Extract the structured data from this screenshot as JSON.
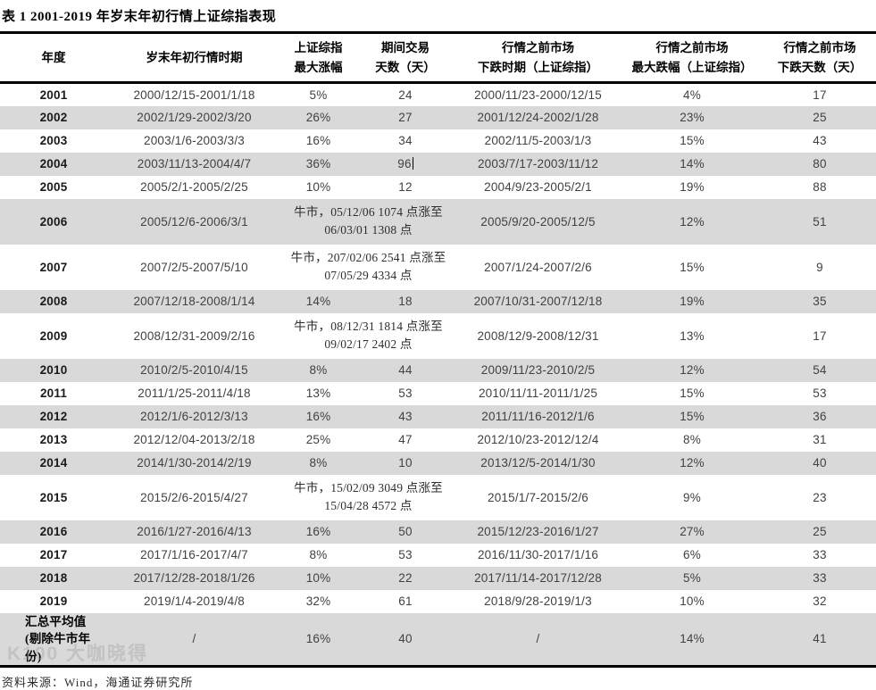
{
  "title": "表 1 2001-2019 年岁末年初行情上证综指表现",
  "table": {
    "headers": [
      {
        "line1": "年度",
        "line2": ""
      },
      {
        "line1": "岁末年初行情时期",
        "line2": ""
      },
      {
        "line1": "上证综指",
        "line2": "最大涨幅"
      },
      {
        "line1": "期间交易",
        "line2": "天数（天）"
      },
      {
        "line1": "行情之前市场",
        "line2": "下跌时期（上证综指）"
      },
      {
        "line1": "行情之前市场",
        "line2": "最大跌幅（上证综指）"
      },
      {
        "line1": "行情之前市场",
        "line2": "下跌天数（天）"
      }
    ],
    "rows": [
      {
        "year": "2001",
        "period": "2000/12/15-2001/1/18",
        "gain": "5%",
        "days": "24",
        "decline_period": "2000/11/23-2000/12/15",
        "decline": "4%",
        "decline_days": "17"
      },
      {
        "year": "2002",
        "period": "2002/1/29-2002/3/20",
        "gain": "26%",
        "days": "27",
        "decline_period": "2001/12/24-2002/1/28",
        "decline": "23%",
        "decline_days": "25"
      },
      {
        "year": "2003",
        "period": "2003/1/6-2003/3/3",
        "gain": "16%",
        "days": "34",
        "decline_period": "2002/11/5-2003/1/3",
        "decline": "15%",
        "decline_days": "43"
      },
      {
        "year": "2004",
        "period": "2003/11/13-2004/4/7",
        "gain": "36%",
        "days": "96",
        "text_cursor_after_days": true,
        "decline_period": "2003/7/17-2003/11/12",
        "decline": "14%",
        "decline_days": "80"
      },
      {
        "year": "2005",
        "period": "2005/2/1-2005/2/25",
        "gain": "10%",
        "days": "12",
        "decline_period": "2004/9/23-2005/2/1",
        "decline": "19%",
        "decline_days": "88"
      },
      {
        "year": "2006",
        "period": "2005/12/6-2006/3/1",
        "bull_note": "牛市，05/12/06 1074 点涨至 06/03/01 1308 点",
        "decline_period": "2005/9/20-2005/12/5",
        "decline": "12%",
        "decline_days": "51"
      },
      {
        "year": "2007",
        "period": "2007/2/5-2007/5/10",
        "bull_note": "牛市，207/02/06 2541 点涨至 07/05/29 4334 点",
        "decline_period": "2007/1/24-2007/2/6",
        "decline": "15%",
        "decline_days": "9"
      },
      {
        "year": "2008",
        "period": "2007/12/18-2008/1/14",
        "gain": "14%",
        "days": "18",
        "decline_period": "2007/10/31-2007/12/18",
        "decline": "19%",
        "decline_days": "35"
      },
      {
        "year": "2009",
        "period": "2008/12/31-2009/2/16",
        "bull_note": "牛市，08/12/31 1814 点涨至 09/02/17 2402 点",
        "decline_period": "2008/12/9-2008/12/31",
        "decline": "13%",
        "decline_days": "17"
      },
      {
        "year": "2010",
        "period": "2010/2/5-2010/4/15",
        "gain": "8%",
        "days": "44",
        "decline_period": "2009/11/23-2010/2/5",
        "decline": "12%",
        "decline_days": "54"
      },
      {
        "year": "2011",
        "period": "2011/1/25-2011/4/18",
        "gain": "13%",
        "days": "53",
        "decline_period": "2010/11/11-2011/1/25",
        "decline": "15%",
        "decline_days": "53"
      },
      {
        "year": "2012",
        "period": "2012/1/6-2012/3/13",
        "gain": "16%",
        "days": "43",
        "decline_period": "2011/11/16-2012/1/6",
        "decline": "15%",
        "decline_days": "36"
      },
      {
        "year": "2013",
        "period": "2012/12/04-2013/2/18",
        "gain": "25%",
        "days": "47",
        "decline_period": "2012/10/23-2012/12/4",
        "decline": "8%",
        "decline_days": "31"
      },
      {
        "year": "2014",
        "period": "2014/1/30-2014/2/19",
        "gain": "8%",
        "days": "10",
        "decline_period": "2013/12/5-2014/1/30",
        "decline": "12%",
        "decline_days": "40"
      },
      {
        "year": "2015",
        "period": "2015/2/6-2015/4/27",
        "bull_note": "牛市，15/02/09 3049 点涨至 15/04/28 4572 点",
        "decline_period": "2015/1/7-2015/2/6",
        "decline": "9%",
        "decline_days": "23"
      },
      {
        "year": "2016",
        "period": "2016/1/27-2016/4/13",
        "gain": "16%",
        "days": "50",
        "decline_period": "2015/12/23-2016/1/27",
        "decline": "27%",
        "decline_days": "25"
      },
      {
        "year": "2017",
        "period": "2017/1/16-2017/4/7",
        "gain": "8%",
        "days": "53",
        "decline_period": "2016/11/30-2017/1/16",
        "decline": "6%",
        "decline_days": "33"
      },
      {
        "year": "2018",
        "period": "2017/12/28-2018/1/26",
        "gain": "10%",
        "days": "22",
        "decline_period": "2017/11/14-2017/12/28",
        "decline": "5%",
        "decline_days": "33"
      },
      {
        "year": "2019",
        "period": "2019/1/4-2019/4/8",
        "gain": "32%",
        "days": "61",
        "decline_period": "2018/9/28-2019/1/3",
        "decline": "10%",
        "decline_days": "32"
      }
    ],
    "summary_row": {
      "label_line1": "汇总平均值",
      "label_line2": "(剔除牛市年份)",
      "period": "/",
      "gain": "16%",
      "days": "40",
      "decline_period": "/",
      "decline": "14%",
      "decline_days": "41"
    }
  },
  "footer": {
    "source": "资料来源：Wind，海通证券研究所"
  },
  "watermark": "K100 大咖晓得",
  "colors": {
    "stripe": "#d9d9d9",
    "rule": "#000000",
    "body_text": "#414141"
  }
}
